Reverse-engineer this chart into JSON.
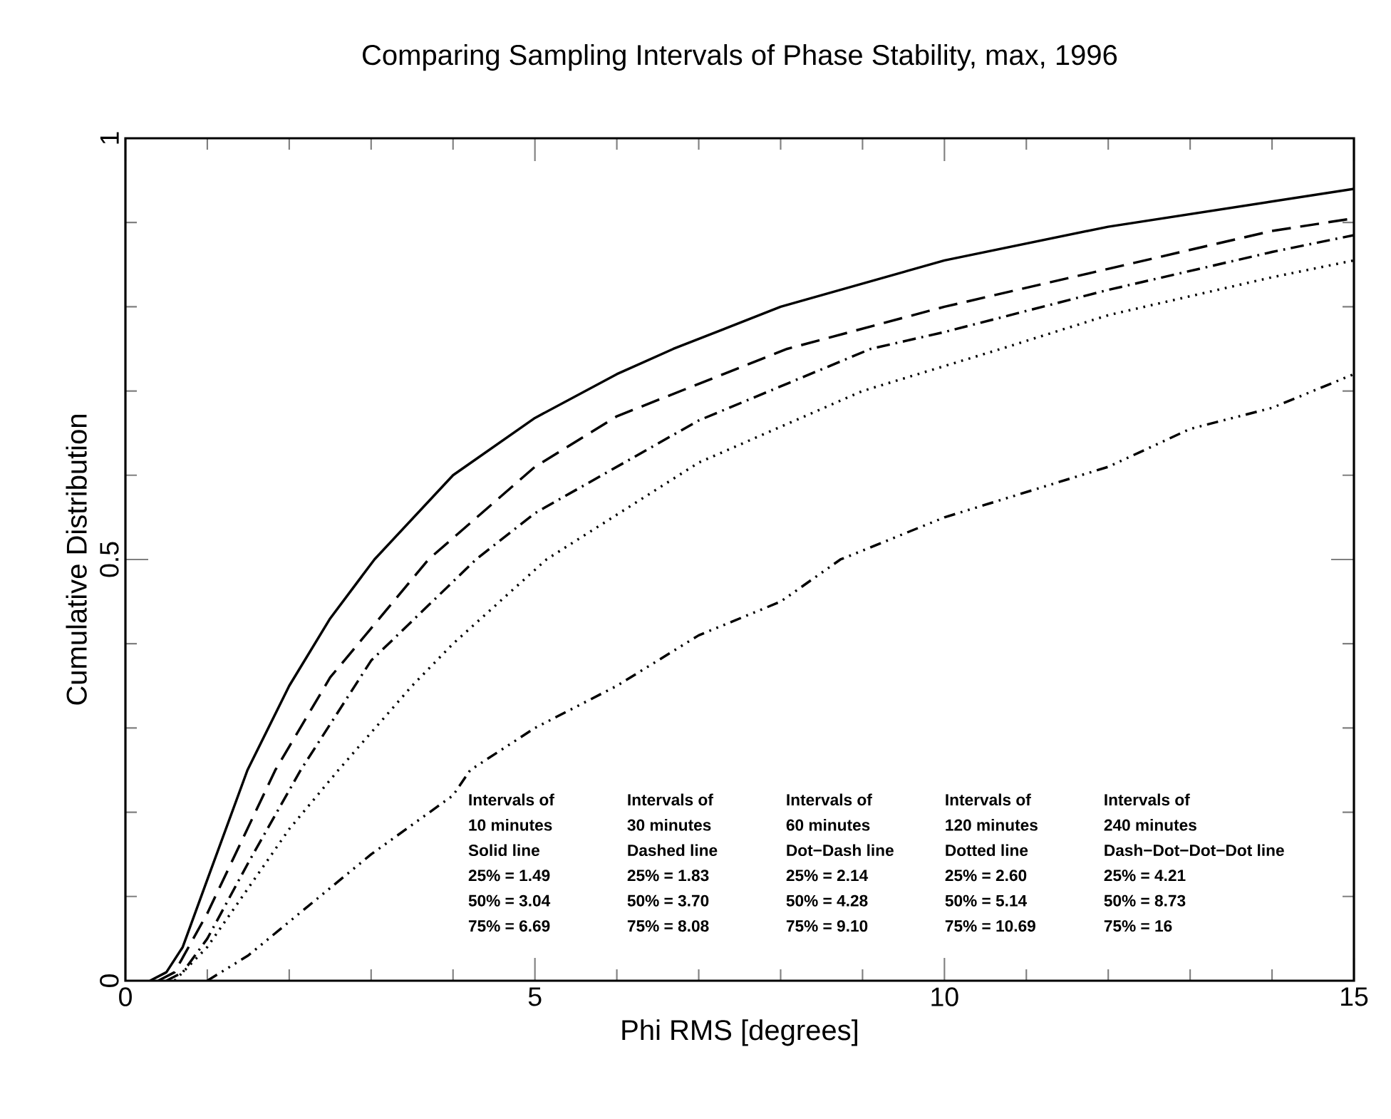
{
  "chart_data": {
    "type": "line",
    "title": "Comparing Sampling Intervals of Phase Stability, max, 1996",
    "xlabel": "Phi RMS [degrees]",
    "ylabel": "Cumulative Distribution",
    "xlim": [
      0,
      15
    ],
    "ylim": [
      0,
      1
    ],
    "xticks": [
      0,
      5,
      10,
      15
    ],
    "yticks": [
      0,
      0.5,
      1
    ],
    "series": [
      {
        "color": "#000000",
        "line_style": "solid",
        "x": [
          0.3,
          0.5,
          0.7,
          1,
          1.49,
          2,
          2.5,
          3.04,
          4,
          5,
          6,
          6.69,
          8,
          10,
          12,
          15
        ],
        "values": [
          0,
          0.01,
          0.04,
          0.12,
          0.25,
          0.35,
          0.43,
          0.5,
          0.6,
          0.668,
          0.72,
          0.75,
          0.8,
          0.855,
          0.895,
          0.94
        ]
      },
      {
        "color": "#000000",
        "line_style": "dashed",
        "x": [
          0.4,
          0.6,
          1,
          1.83,
          2.5,
          3.7,
          5,
          6,
          8.08,
          10,
          12,
          14,
          15
        ],
        "values": [
          0,
          0.01,
          0.08,
          0.25,
          0.36,
          0.5,
          0.61,
          0.67,
          0.75,
          0.8,
          0.845,
          0.89,
          0.905
        ]
      },
      {
        "color": "#000000",
        "line_style": "dashdot",
        "x": [
          0.5,
          0.7,
          1,
          1.5,
          2.14,
          3,
          4.28,
          5,
          7,
          9.1,
          10,
          12,
          14,
          15
        ],
        "values": [
          0,
          0.01,
          0.05,
          0.14,
          0.25,
          0.38,
          0.5,
          0.555,
          0.665,
          0.75,
          0.77,
          0.82,
          0.865,
          0.885
        ]
      },
      {
        "color": "#000000",
        "line_style": "dotted",
        "x": [
          0.6,
          1,
          1.5,
          2,
          2.6,
          3.5,
          4,
          5.14,
          7,
          9,
          10.69,
          12,
          14,
          15
        ],
        "values": [
          0,
          0.04,
          0.11,
          0.18,
          0.25,
          0.35,
          0.4,
          0.5,
          0.615,
          0.7,
          0.75,
          0.79,
          0.835,
          0.855
        ]
      },
      {
        "color": "#000000",
        "line_style": "dashdotdotdot",
        "x": [
          1,
          1.5,
          2,
          3,
          4,
          4.21,
          5,
          6,
          7,
          8,
          8.73,
          10,
          12,
          13,
          14,
          15
        ],
        "values": [
          0,
          0.03,
          0.07,
          0.15,
          0.22,
          0.25,
          0.3,
          0.35,
          0.41,
          0.45,
          0.5,
          0.55,
          0.61,
          0.655,
          0.68,
          0.72
        ]
      }
    ],
    "annotations": [
      "Intervals of",
      "10 minutes",
      "Solid line",
      "25% = 1.49",
      "50% = 3.04",
      "75% = 6.69",
      "Intervals of",
      "30 minutes",
      "Dashed line",
      "25% = 1.83",
      "50% = 3.70",
      "75% = 8.08",
      "Intervals of",
      "60 minutes",
      "Dot−Dash line",
      "25% = 2.14",
      "50% = 4.28",
      "75% = 9.10",
      "Intervals of",
      "120 minutes",
      "Dotted line",
      "25% = 2.60",
      "50% = 5.14",
      "75% = 10.69",
      "Intervals of",
      "240 minutes",
      "Dash−Dot−Dot−Dot line",
      "25% = 4.21",
      "50% = 8.73",
      "75% = 16"
    ]
  }
}
